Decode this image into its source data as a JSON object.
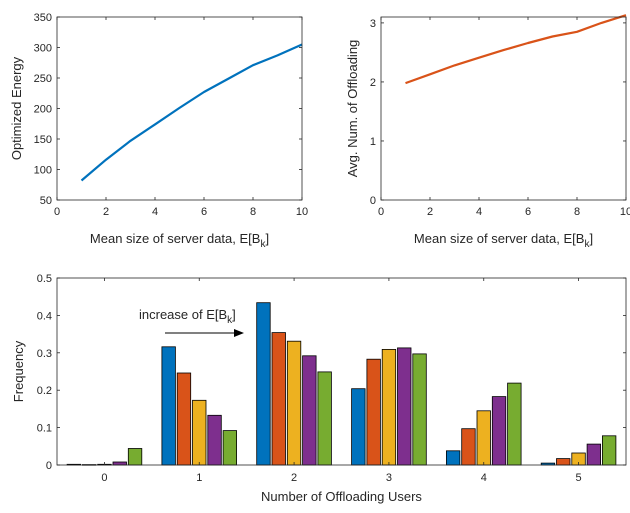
{
  "chart_data": [
    {
      "type": "line",
      "xlabel": "Mean size of server data, E[B",
      "xlabel_sub": "k",
      "xlabel_end": "]",
      "ylabel": "Optimized Energy",
      "xlim": [
        0,
        10
      ],
      "ylim": [
        50,
        350
      ],
      "xticks": [
        "0",
        "2",
        "4",
        "6",
        "8",
        "10"
      ],
      "yticks": [
        "50",
        "100",
        "150",
        "200",
        "250",
        "300",
        "350"
      ],
      "grid": false,
      "series": [
        {
          "color": "#0072BD",
          "x": [
            1,
            2,
            3,
            4,
            5,
            6,
            7,
            8,
            9,
            10
          ],
          "y": [
            82,
            116,
            147,
            174,
            201,
            227,
            249,
            271,
            287,
            305
          ]
        }
      ]
    },
    {
      "type": "line",
      "xlabel": "Mean size of server data, E[B",
      "xlabel_sub": "k",
      "xlabel_end": "]",
      "ylabel": "Avg. Num. of Offloading",
      "xlim": [
        0,
        10
      ],
      "ylim": [
        0,
        3.1
      ],
      "xticks": [
        "0",
        "2",
        "4",
        "6",
        "8",
        "10"
      ],
      "yticks": [
        "0",
        "1",
        "2",
        "3"
      ],
      "grid": false,
      "series": [
        {
          "color": "#D95319",
          "x": [
            1,
            2,
            3,
            4,
            5,
            6,
            7,
            8,
            9,
            10
          ],
          "y": [
            1.98,
            2.13,
            2.28,
            2.41,
            2.54,
            2.66,
            2.77,
            2.85,
            3.0,
            3.13
          ]
        }
      ]
    },
    {
      "type": "bar",
      "xlabel": "Number of Offloading Users",
      "ylabel": "Frequency",
      "categories": [
        "0",
        "1",
        "2",
        "3",
        "4",
        "5"
      ],
      "ylim": [
        0,
        0.5
      ],
      "yticks": [
        "0",
        "0.1",
        "0.2",
        "0.3",
        "0.4",
        "0.5"
      ],
      "grid": false,
      "colors": [
        "#0072BD",
        "#D95319",
        "#EDB120",
        "#7E2F8E",
        "#77AC30"
      ],
      "series": [
        {
          "values": [
            0.002,
            0.316,
            0.434,
            0.204,
            0.038,
            0.005
          ]
        },
        {
          "values": [
            0.001,
            0.246,
            0.354,
            0.283,
            0.097,
            0.017
          ]
        },
        {
          "values": [
            0.002,
            0.173,
            0.331,
            0.309,
            0.145,
            0.032
          ]
        },
        {
          "values": [
            0.008,
            0.133,
            0.292,
            0.313,
            0.183,
            0.056
          ]
        },
        {
          "values": [
            0.044,
            0.092,
            0.249,
            0.297,
            0.219,
            0.078
          ]
        }
      ],
      "annotation": {
        "text": "increase of E[B",
        "sub": "k",
        "end": "]"
      }
    }
  ]
}
